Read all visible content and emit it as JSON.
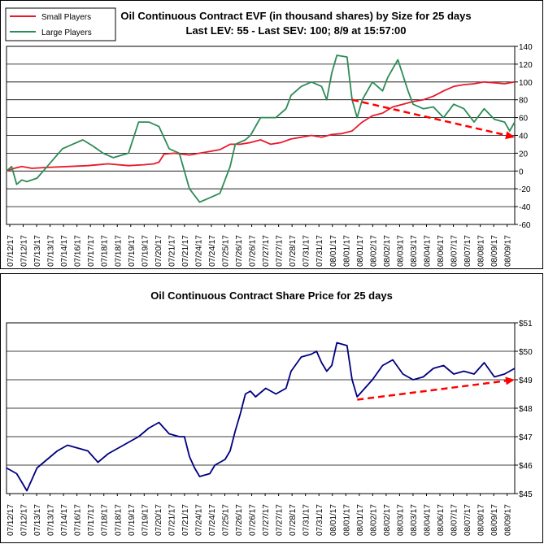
{
  "chart_data": [
    {
      "type": "line",
      "title": "Oil Continuous Contract EVF (in thousand shares) by Size for 25 days",
      "subtitle": "Last LEV: 55 - Last SEV: 100; 8/9 at 15:57:00",
      "xlabel": "",
      "ylabel": "",
      "ylim": [
        -60,
        140
      ],
      "y_ticks": [
        "140",
        "120",
        "100",
        "80",
        "60",
        "40",
        "20",
        "0",
        "-20",
        "-40",
        "-60"
      ],
      "grid": true,
      "legend_position": "top-left",
      "x_ticks": [
        "07/12/17",
        "07/12/17",
        "07/13/17",
        "07/13/17",
        "07/14/17",
        "07/16/17",
        "07/17/17",
        "07/18/17",
        "07/18/17",
        "07/19/17",
        "07/19/17",
        "07/20/17",
        "07/21/17",
        "07/21/17",
        "07/24/17",
        "07/24/17",
        "07/25/17",
        "07/26/17",
        "07/26/17",
        "07/27/17",
        "07/27/17",
        "07/28/17",
        "07/31/17",
        "07/31/17",
        "08/01/17",
        "08/01/17",
        "08/01/17",
        "08/02/17",
        "08/02/17",
        "08/03/17",
        "08/03/17",
        "08/04/17",
        "08/06/17",
        "08/07/17",
        "08/07/17",
        "08/08/17",
        "08/09/17",
        "08/09/17"
      ],
      "series": [
        {
          "name": "Small Players",
          "color": "#e8192c",
          "points": [
            [
              0,
              0
            ],
            [
              1.5,
              3
            ],
            [
              3,
              5
            ],
            [
              5,
              3
            ],
            [
              8,
              4
            ],
            [
              12,
              5
            ],
            [
              16,
              6
            ],
            [
              20,
              8
            ],
            [
              24,
              6
            ],
            [
              27,
              7
            ],
            [
              29,
              8
            ],
            [
              30,
              10
            ],
            [
              31,
              19
            ],
            [
              33,
              20
            ],
            [
              36,
              18
            ],
            [
              38,
              20
            ],
            [
              40,
              22
            ],
            [
              42,
              24
            ],
            [
              44,
              30
            ],
            [
              46,
              30
            ],
            [
              48,
              32
            ],
            [
              50,
              35
            ],
            [
              52,
              30
            ],
            [
              54,
              32
            ],
            [
              56,
              36
            ],
            [
              58,
              38
            ],
            [
              60,
              40
            ],
            [
              62,
              38
            ],
            [
              64,
              41
            ],
            [
              66,
              42
            ],
            [
              68,
              45
            ],
            [
              70,
              55
            ],
            [
              72,
              62
            ],
            [
              74,
              65
            ],
            [
              76,
              72
            ],
            [
              78,
              75
            ],
            [
              80,
              78
            ],
            [
              82,
              80
            ],
            [
              84,
              84
            ],
            [
              86,
              90
            ],
            [
              88,
              95
            ],
            [
              90,
              97
            ],
            [
              92,
              98
            ],
            [
              94,
              100
            ],
            [
              96,
              99
            ],
            [
              98,
              98
            ],
            [
              100,
              100
            ]
          ]
        },
        {
          "name": "Large Players",
          "color": "#2e8b57",
          "points": [
            [
              0,
              0
            ],
            [
              1,
              5
            ],
            [
              2,
              -15
            ],
            [
              3,
              -10
            ],
            [
              4,
              -12
            ],
            [
              6,
              -8
            ],
            [
              8,
              5
            ],
            [
              11,
              25
            ],
            [
              13,
              30
            ],
            [
              15,
              35
            ],
            [
              17,
              28
            ],
            [
              19,
              20
            ],
            [
              21,
              15
            ],
            [
              24,
              20
            ],
            [
              26,
              55
            ],
            [
              28,
              55
            ],
            [
              30,
              50
            ],
            [
              32,
              25
            ],
            [
              34,
              20
            ],
            [
              36,
              -20
            ],
            [
              38,
              -35
            ],
            [
              40,
              -30
            ],
            [
              42,
              -25
            ],
            [
              44,
              5
            ],
            [
              45,
              30
            ],
            [
              47,
              35
            ],
            [
              48,
              40
            ],
            [
              50,
              60
            ],
            [
              53,
              60
            ],
            [
              55,
              70
            ],
            [
              56,
              85
            ],
            [
              58,
              95
            ],
            [
              60,
              100
            ],
            [
              62,
              95
            ],
            [
              63,
              80
            ],
            [
              64,
              110
            ],
            [
              65,
              130
            ],
            [
              67,
              128
            ],
            [
              68,
              80
            ],
            [
              69,
              60
            ],
            [
              70,
              80
            ],
            [
              72,
              100
            ],
            [
              74,
              90
            ],
            [
              75,
              105
            ],
            [
              77,
              125
            ],
            [
              79,
              90
            ],
            [
              80,
              75
            ],
            [
              82,
              70
            ],
            [
              84,
              72
            ],
            [
              86,
              60
            ],
            [
              88,
              75
            ],
            [
              90,
              70
            ],
            [
              92,
              55
            ],
            [
              94,
              70
            ],
            [
              96,
              58
            ],
            [
              98,
              55
            ],
            [
              99,
              45
            ],
            [
              100,
              55
            ]
          ]
        }
      ],
      "annotations": [
        {
          "type": "trend-arrow",
          "color": "#ff0000",
          "from": [
            68,
            80
          ],
          "to": [
            100,
            38
          ]
        }
      ]
    },
    {
      "type": "line",
      "title": "Oil Continuous Contract Share Price for 25 days",
      "xlabel": "",
      "ylabel": "",
      "ylim": [
        45,
        51
      ],
      "y_ticks": [
        "$51",
        "$50",
        "$49",
        "$48",
        "$47",
        "$46",
        "$45"
      ],
      "grid": true,
      "x_ticks": [
        "07/12/17",
        "07/12/17",
        "07/13/17",
        "07/13/17",
        "07/14/17",
        "07/16/17",
        "07/17/17",
        "07/18/17",
        "07/18/17",
        "07/19/17",
        "07/19/17",
        "07/20/17",
        "07/21/17",
        "07/21/17",
        "07/24/17",
        "07/24/17",
        "07/25/17",
        "07/26/17",
        "07/26/17",
        "07/27/17",
        "07/27/17",
        "07/28/17",
        "07/31/17",
        "07/31/17",
        "08/01/17",
        "08/01/17",
        "08/01/17",
        "08/02/17",
        "08/02/17",
        "08/03/17",
        "08/03/17",
        "08/04/17",
        "08/06/17",
        "08/07/17",
        "08/07/17",
        "08/08/17",
        "08/09/17",
        "08/09/17"
      ],
      "series": [
        {
          "name": "",
          "color": "#000080",
          "points": [
            [
              0,
              45.9
            ],
            [
              1,
              45.8
            ],
            [
              2,
              45.7
            ],
            [
              3,
              45.4
            ],
            [
              4,
              45.1
            ],
            [
              5,
              45.5
            ],
            [
              6,
              45.9
            ],
            [
              8,
              46.2
            ],
            [
              10,
              46.5
            ],
            [
              12,
              46.7
            ],
            [
              14,
              46.6
            ],
            [
              16,
              46.5
            ],
            [
              18,
              46.1
            ],
            [
              20,
              46.4
            ],
            [
              22,
              46.6
            ],
            [
              24,
              46.8
            ],
            [
              26,
              47.0
            ],
            [
              28,
              47.3
            ],
            [
              30,
              47.5
            ],
            [
              32,
              47.1
            ],
            [
              34,
              47.0
            ],
            [
              35,
              47.0
            ],
            [
              36,
              46.3
            ],
            [
              37,
              45.9
            ],
            [
              38,
              45.6
            ],
            [
              40,
              45.7
            ],
            [
              41,
              46.0
            ],
            [
              43,
              46.2
            ],
            [
              44,
              46.5
            ],
            [
              45,
              47.2
            ],
            [
              46,
              47.8
            ],
            [
              47,
              48.5
            ],
            [
              48,
              48.6
            ],
            [
              49,
              48.4
            ],
            [
              51,
              48.7
            ],
            [
              53,
              48.5
            ],
            [
              55,
              48.7
            ],
            [
              56,
              49.3
            ],
            [
              58,
              49.8
            ],
            [
              60,
              49.9
            ],
            [
              61,
              50.0
            ],
            [
              62,
              49.6
            ],
            [
              63,
              49.3
            ],
            [
              64,
              49.5
            ],
            [
              65,
              50.3
            ],
            [
              67,
              50.2
            ],
            [
              68,
              49.0
            ],
            [
              69,
              48.4
            ],
            [
              70,
              48.6
            ],
            [
              72,
              49.0
            ],
            [
              74,
              49.5
            ],
            [
              76,
              49.7
            ],
            [
              78,
              49.2
            ],
            [
              80,
              49.0
            ],
            [
              82,
              49.1
            ],
            [
              84,
              49.4
            ],
            [
              86,
              49.5
            ],
            [
              88,
              49.2
            ],
            [
              90,
              49.3
            ],
            [
              92,
              49.2
            ],
            [
              94,
              49.6
            ],
            [
              96,
              49.1
            ],
            [
              98,
              49.2
            ],
            [
              100,
              49.4
            ]
          ]
        }
      ],
      "annotations": [
        {
          "type": "trend-arrow",
          "color": "#ff0000",
          "from": [
            69,
            48.3
          ],
          "to": [
            100,
            49.0
          ]
        }
      ]
    }
  ]
}
